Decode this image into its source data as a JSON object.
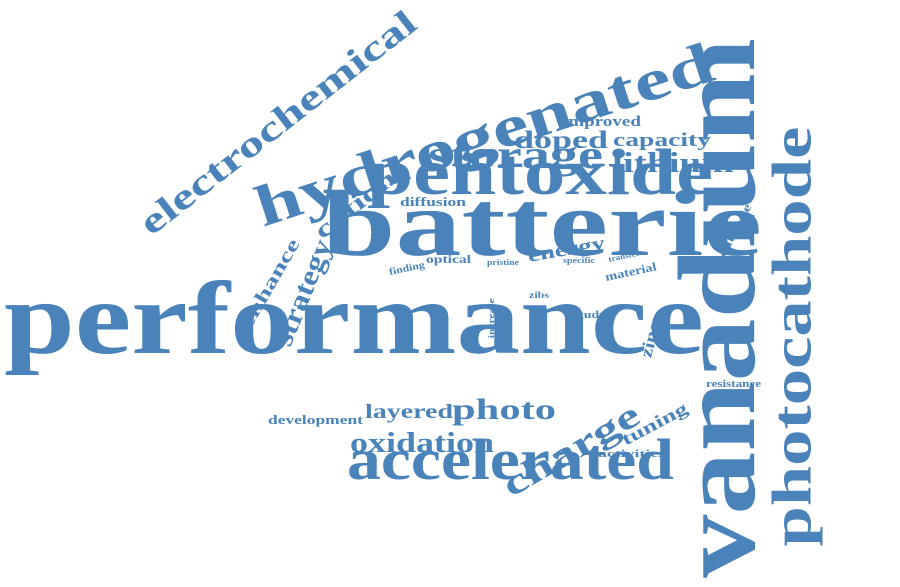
{
  "color": "#4a83b9",
  "words": [
    {
      "key": "performance",
      "text": "performance"
    },
    {
      "key": "vanadium",
      "text": "vanadium"
    },
    {
      "key": "batterie",
      "text": "batterie"
    },
    {
      "key": "hydrogenated",
      "text": "hydrogenated"
    },
    {
      "key": "pentoxide",
      "text": "pentoxide"
    },
    {
      "key": "accelerated",
      "text": "accelerated"
    },
    {
      "key": "photocathode",
      "text": "photocathode"
    },
    {
      "key": "electrochemical",
      "text": "electrochemical"
    },
    {
      "key": "storage",
      "text": "storage"
    },
    {
      "key": "charge",
      "text": "charge"
    },
    {
      "key": "oxidation",
      "text": "oxidation"
    },
    {
      "key": "photo",
      "text": "photo"
    },
    {
      "key": "strategy",
      "text": "strategy"
    },
    {
      "key": "cation",
      "text": "cation"
    },
    {
      "key": "lithium",
      "text": "lithium"
    },
    {
      "key": "doped",
      "text": "doped"
    },
    {
      "key": "capacity",
      "text": "capacity"
    },
    {
      "key": "enhance",
      "text": "enhance"
    },
    {
      "key": "layered",
      "text": "layered"
    },
    {
      "key": "energy",
      "text": "energy"
    },
    {
      "key": "zinc",
      "text": "zinc"
    },
    {
      "key": "tuning",
      "text": "tuning"
    },
    {
      "key": "improved",
      "text": "improved"
    },
    {
      "key": "diffusion",
      "text": "diffusion"
    },
    {
      "key": "cathode",
      "text": "cathode"
    },
    {
      "key": "optical",
      "text": "optical"
    },
    {
      "key": "material",
      "text": "material"
    },
    {
      "key": "development",
      "text": "development"
    },
    {
      "key": "activities",
      "text": "activities"
    },
    {
      "key": "resistance",
      "text": "resistance"
    },
    {
      "key": "finding",
      "text": "finding"
    },
    {
      "key": "study",
      "text": "study"
    },
    {
      "key": "pristine",
      "text": "pristine"
    },
    {
      "key": "specific",
      "text": "specific"
    },
    {
      "key": "transfer",
      "text": "transfer"
    },
    {
      "key": "zibs",
      "text": "zibs"
    },
    {
      "key": "increase",
      "text": "increase"
    }
  ]
}
